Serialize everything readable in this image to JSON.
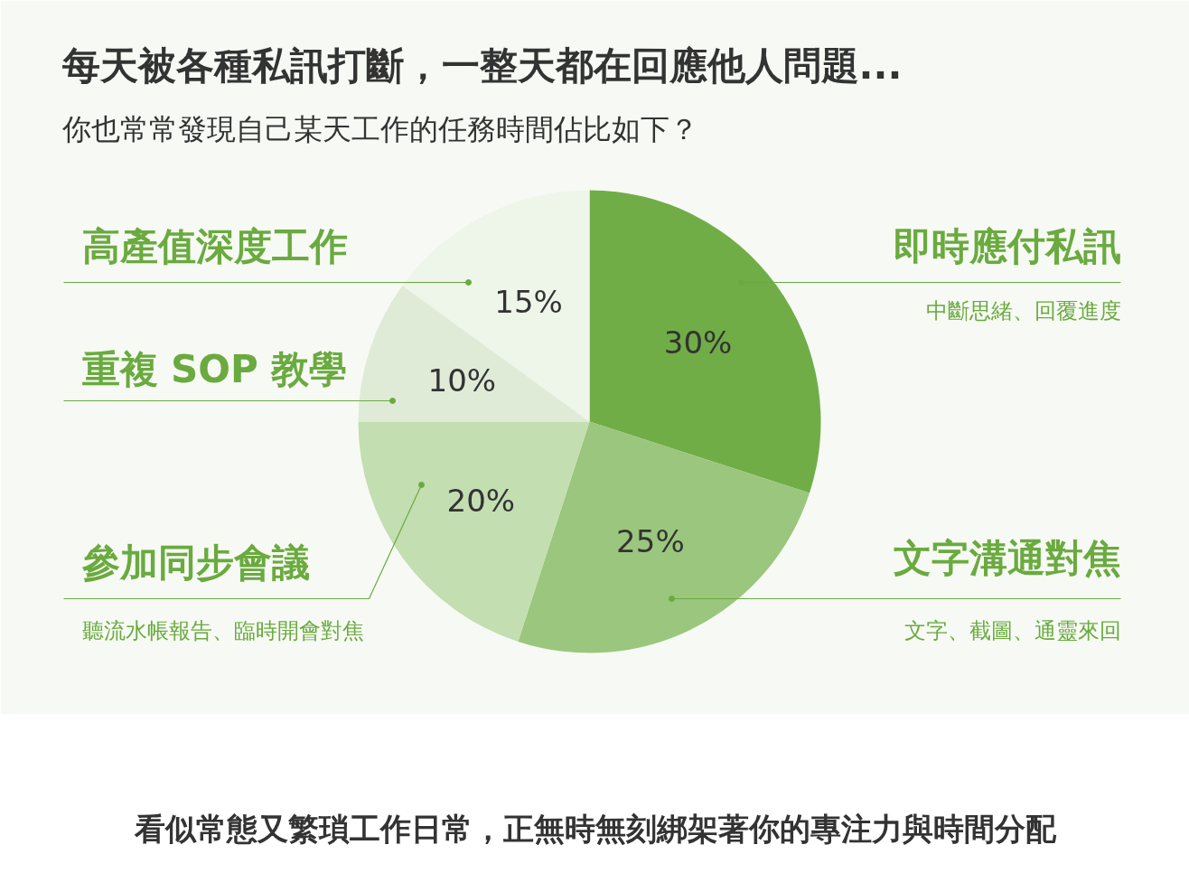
{
  "chart_data": {
    "type": "pie",
    "title": "每天被各種私訊打斷，一整天都在回應他人問題...",
    "subtitle": "你也常常發現自己某天工作的任務時間佔比如下？",
    "categories": [
      "即時應付私訊",
      "文字溝通對焦",
      "參加同步會議",
      "重複 SOP 教學",
      "高產值深度工作"
    ],
    "values": [
      30,
      25,
      20,
      10,
      15
    ],
    "colors": [
      "#70ad47",
      "#9bc67d",
      "#c3deb1",
      "#dfebd7",
      "#eef5e9"
    ],
    "value_labels": [
      "30%",
      "25%",
      "20%",
      "10%",
      "15%"
    ],
    "annotations": [
      "中斷思緒、回覆進度",
      "文字、截圖、通靈來回",
      "聽流水帳報告、臨時開會對焦",
      "看似常態又繁瑣工作日常，正無時無刻綁架著你的專注力與時間分配"
    ]
  }
}
